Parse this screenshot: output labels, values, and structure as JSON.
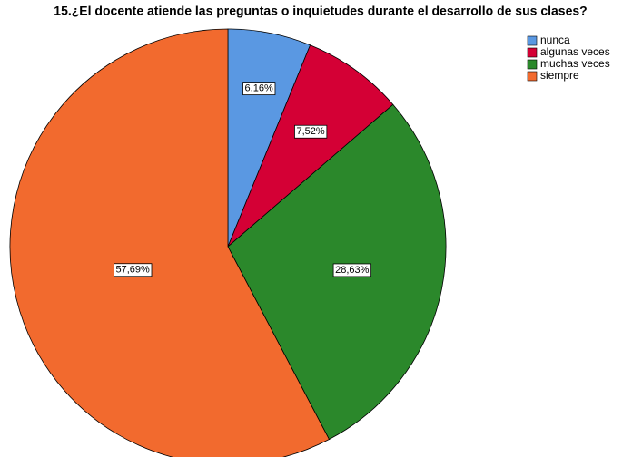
{
  "chart_data": {
    "type": "pie",
    "title": "15.¿El docente atiende las preguntas o inquietudes durante el desarrollo de sus clases?",
    "categories": [
      "nunca",
      "algunas veces",
      "muchas veces",
      "siempre"
    ],
    "values": [
      6.16,
      7.52,
      28.63,
      57.69
    ],
    "value_labels": [
      "6,16%",
      "7,52%",
      "28,63%",
      "57,69%"
    ],
    "colors": [
      "#5a98e2",
      "#d40035",
      "#2b882b",
      "#f26a2e"
    ]
  }
}
